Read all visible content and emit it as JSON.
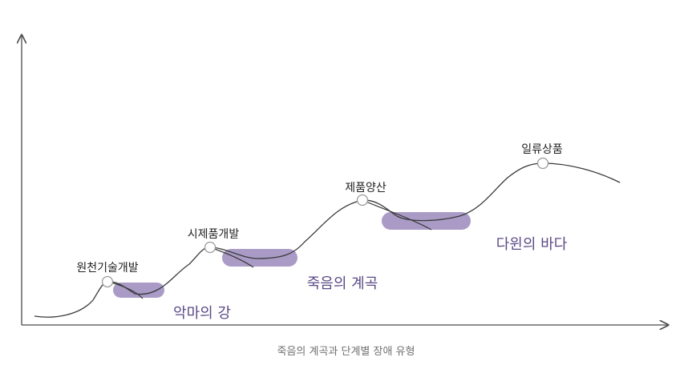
{
  "diagram": {
    "stages": [
      {
        "id": "tech",
        "label": "원천기술개발"
      },
      {
        "id": "proto",
        "label": "시제품개발"
      },
      {
        "id": "mass",
        "label": "제품양산"
      },
      {
        "id": "premium",
        "label": "일류상품"
      }
    ],
    "barriers": [
      {
        "id": "devil",
        "label": "악마의 강"
      },
      {
        "id": "death",
        "label": "죽음의 계곡"
      },
      {
        "id": "darwin",
        "label": "다윈의 바다"
      }
    ],
    "caption": "죽음의 계곡과 단계별 장애 유형",
    "colors": {
      "curve": "#3a3a3a",
      "axis": "#4a4a4a",
      "barrier_fill": "#a99bc6",
      "barrier_text": "#5b4a86",
      "node_fill": "#ffffff",
      "node_stroke": "#9a9a9a"
    }
  }
}
